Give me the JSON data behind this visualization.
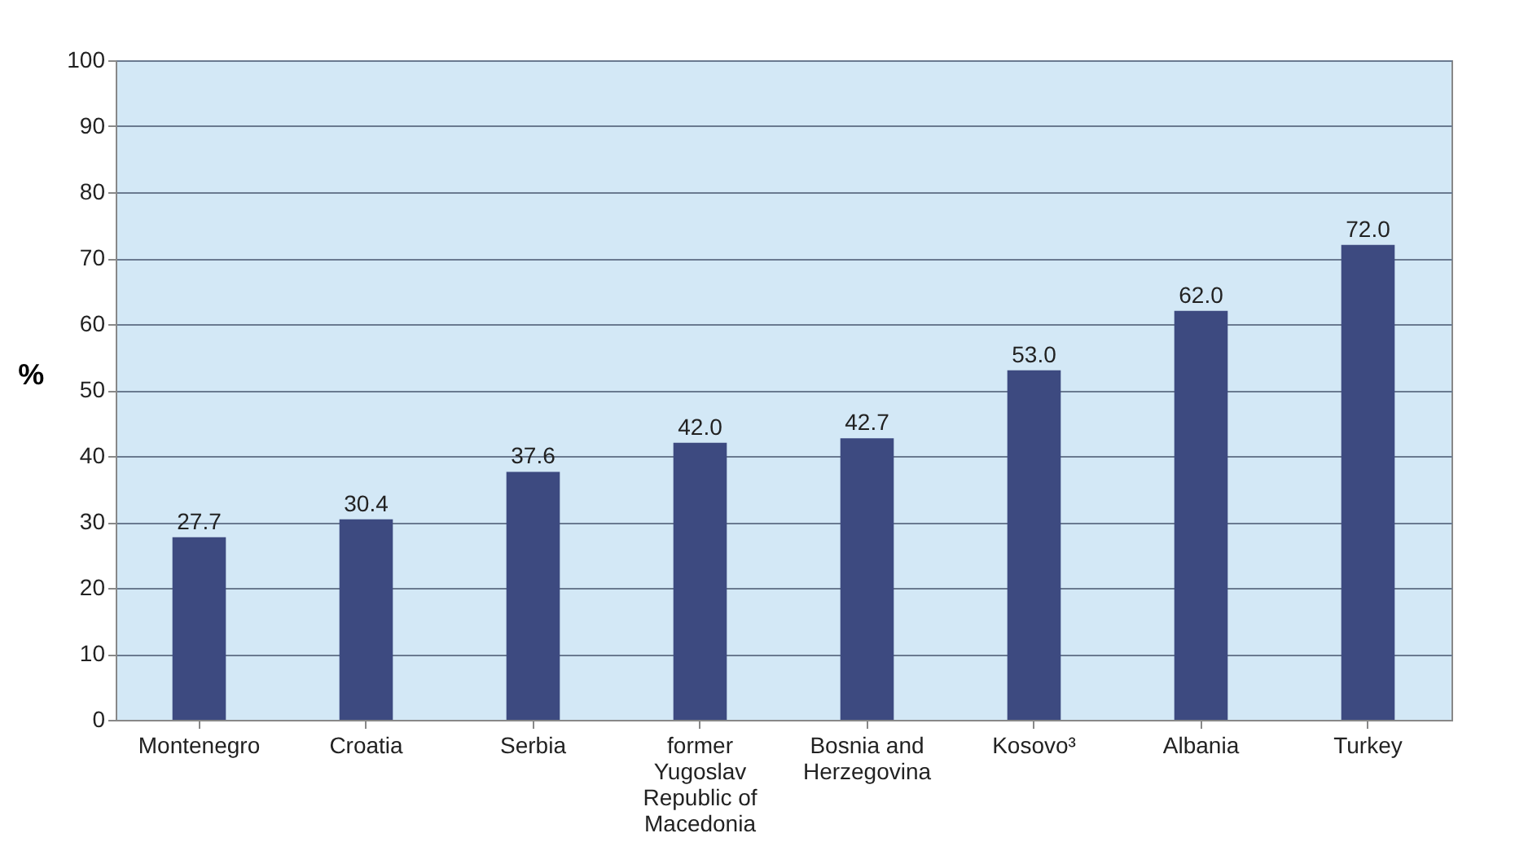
{
  "chart_data": {
    "type": "bar",
    "ylabel": "%",
    "categories": [
      "Montenegro",
      "Croatia",
      "Serbia",
      "former Yugoslav Republic of Macedonia",
      "Bosnia and Herzegovina",
      "Kosovo³",
      "Albania",
      "Turkey"
    ],
    "values": [
      27.7,
      30.4,
      37.6,
      42.0,
      42.7,
      53.0,
      62.0,
      72.0
    ],
    "value_labels": [
      "27.7",
      "30.4",
      "37.6",
      "42.0",
      "42.7",
      "53.0",
      "62.0",
      "72.0"
    ],
    "color": "#3d4a80",
    "ylim": [
      0,
      100
    ],
    "yticks": [
      0,
      10,
      20,
      30,
      40,
      50,
      60,
      70,
      80,
      90,
      100
    ],
    "grid": "y"
  }
}
